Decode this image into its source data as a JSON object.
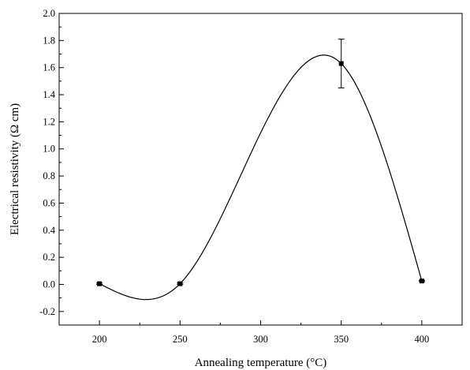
{
  "chart_data": {
    "type": "scatter",
    "title": "",
    "xlabel": "Annealing temperature (°C)",
    "ylabel": "Electrical resistivity (Ω cm)",
    "xlim": [
      175,
      425
    ],
    "ylim": [
      -0.3,
      2.0
    ],
    "x_ticks": [
      200,
      250,
      300,
      350,
      400
    ],
    "x_tick_labels": [
      "200",
      "250",
      "300",
      "350",
      "400"
    ],
    "y_ticks": [
      -0.2,
      0.0,
      0.2,
      0.4,
      0.6,
      0.8,
      1.0,
      1.2,
      1.4,
      1.6,
      1.8,
      2.0
    ],
    "y_tick_labels": [
      "-0.2",
      "0.0",
      "0.2",
      "0.4",
      "0.6",
      "0.8",
      "1.0",
      "1.2",
      "1.4",
      "1.6",
      "1.8",
      "2.0"
    ],
    "grid": false,
    "series": [
      {
        "points": [
          {
            "x": 200,
            "y": 0.005,
            "err": 0.005
          },
          {
            "x": 250,
            "y": 0.005,
            "err": 0.005
          },
          {
            "x": 350,
            "y": 1.63,
            "err": 0.18
          },
          {
            "x": 400,
            "y": 0.025,
            "err": 0.005
          }
        ],
        "fit_curve": true,
        "color": "#000000"
      }
    ]
  }
}
